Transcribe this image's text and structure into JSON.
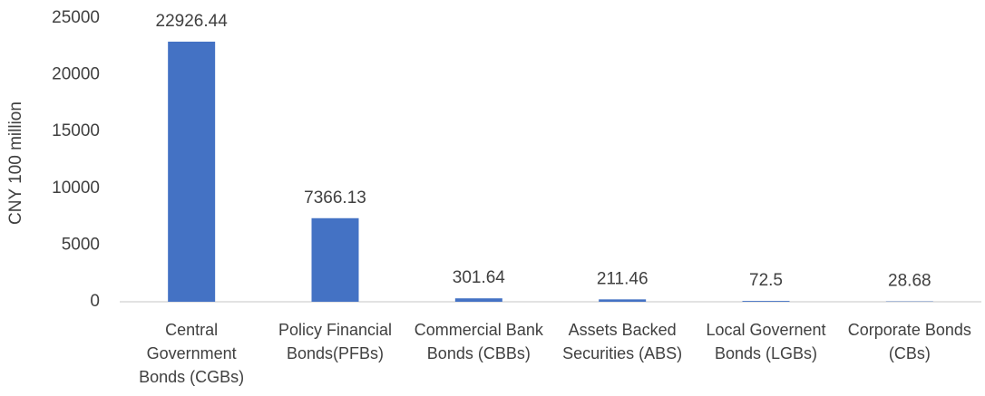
{
  "chart_data": {
    "type": "bar",
    "y_label": "CNY 100 million",
    "categories": [
      "Central Government Bonds (CGBs)",
      "Policy Financial Bonds(PFBs)",
      "Commercial Bank Bonds (CBBs)",
      "Assets Backed Securities (ABS)",
      "Local Governent Bonds (LGBs)",
      "Corporate Bonds (CBs)"
    ],
    "values": [
      22926.44,
      7366.13,
      301.64,
      211.46,
      72.5,
      28.68
    ],
    "color": "#4472c4",
    "ylim": [
      0,
      25000
    ],
    "yticks": [
      0,
      5000,
      10000,
      15000,
      20000,
      25000
    ],
    "grid": false
  }
}
